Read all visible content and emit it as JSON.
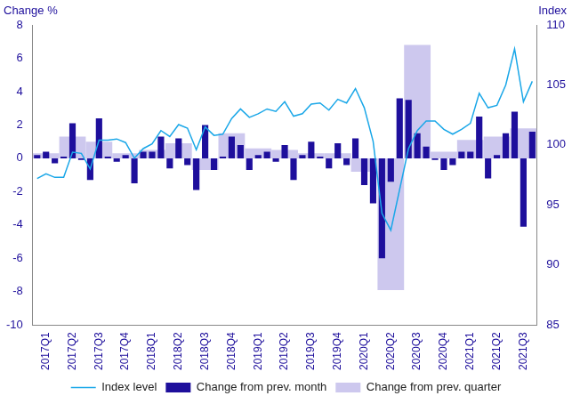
{
  "chart_data": {
    "type": "bar",
    "y_label": "Change %",
    "y2_label": "Index",
    "categories": [
      null,
      "2017Q1",
      null,
      null,
      "2017Q2",
      null,
      null,
      "2017Q3",
      null,
      null,
      "2017Q4",
      null,
      null,
      "2018Q1",
      null,
      null,
      "2018Q2",
      null,
      null,
      "2018Q3",
      null,
      null,
      "2018Q4",
      null,
      null,
      "2019Q1",
      null,
      null,
      "2019Q2",
      null,
      null,
      "2019Q3",
      null,
      null,
      "2019Q4",
      null,
      null,
      "2020Q1",
      null,
      null,
      "2020Q2",
      null,
      null,
      "2020Q3",
      null,
      null,
      "2020Q4",
      null,
      null,
      "2021Q1",
      null,
      null,
      "2021Q2",
      null,
      null,
      "2021Q3",
      null
    ],
    "series": [
      {
        "name": "Change from prev. quarter",
        "type": "bar",
        "color": "#cdc8ee",
        "values": [
          null,
          0.3,
          null,
          null,
          1.3,
          null,
          null,
          1.0,
          null,
          null,
          0.3,
          null,
          null,
          0.5,
          null,
          null,
          0.9,
          null,
          null,
          -0.7,
          null,
          null,
          1.5,
          null,
          null,
          0.6,
          null,
          null,
          0.5,
          null,
          null,
          0.3,
          null,
          null,
          0.3,
          null,
          null,
          -0.8,
          null,
          null,
          -7.9,
          null,
          null,
          6.8,
          null,
          null,
          0.4,
          null,
          null,
          1.1,
          null,
          null,
          1.3,
          null,
          null,
          1.8,
          null
        ]
      },
      {
        "name": "Change from prev. month",
        "type": "bar",
        "color": "#1e0f9c",
        "values": [
          0.2,
          0.4,
          -0.3,
          0.1,
          2.1,
          -0.1,
          -1.3,
          2.4,
          0.1,
          -0.2,
          0.2,
          -1.5,
          0.4,
          0.4,
          1.3,
          -0.6,
          1.2,
          -0.4,
          -1.9,
          2.0,
          -0.7,
          0.1,
          1.3,
          0.8,
          -0.7,
          0.2,
          0.4,
          -0.2,
          0.8,
          -1.3,
          0.2,
          1.0,
          0.1,
          -0.6,
          0.9,
          -0.4,
          1.2,
          -1.6,
          -2.7,
          -6.0,
          -1.4,
          3.6,
          3.5,
          1.5,
          0.7,
          -0.1,
          -0.7,
          -0.4,
          0.4,
          0.4,
          2.5,
          -1.2,
          0.2,
          1.5,
          2.8,
          -4.1,
          1.6
        ]
      },
      {
        "name": "Index level",
        "type": "line",
        "axis": "y2",
        "color": "#1aa7e8",
        "line_style": "solid",
        "values": [
          97.2,
          97.6,
          97.3,
          97.3,
          99.4,
          99.3,
          98.0,
          100.4,
          100.4,
          100.5,
          100.2,
          98.9,
          99.7,
          100.1,
          101.2,
          100.7,
          101.7,
          101.4,
          99.6,
          101.5,
          100.8,
          100.9,
          102.2,
          103.0,
          102.3,
          102.6,
          103.0,
          102.8,
          103.6,
          102.4,
          102.6,
          103.4,
          103.5,
          102.9,
          103.8,
          103.5,
          104.7,
          103.1,
          100.3,
          94.3,
          92.9,
          96.3,
          99.7,
          101.2,
          102.0,
          102.0,
          101.3,
          100.9,
          101.3,
          101.8,
          104.3,
          103.1,
          103.3,
          105.0,
          108.0,
          103.6,
          105.3
        ]
      }
    ],
    "ylim": [
      -10,
      8
    ],
    "yticks": [
      -10,
      -8,
      -6,
      -4,
      -2,
      0,
      2,
      4,
      6,
      8
    ],
    "y2lim": [
      85,
      110
    ],
    "y2ticks": [
      85,
      90,
      95,
      100,
      105,
      110
    ],
    "grid": false,
    "legend": "bottom"
  }
}
